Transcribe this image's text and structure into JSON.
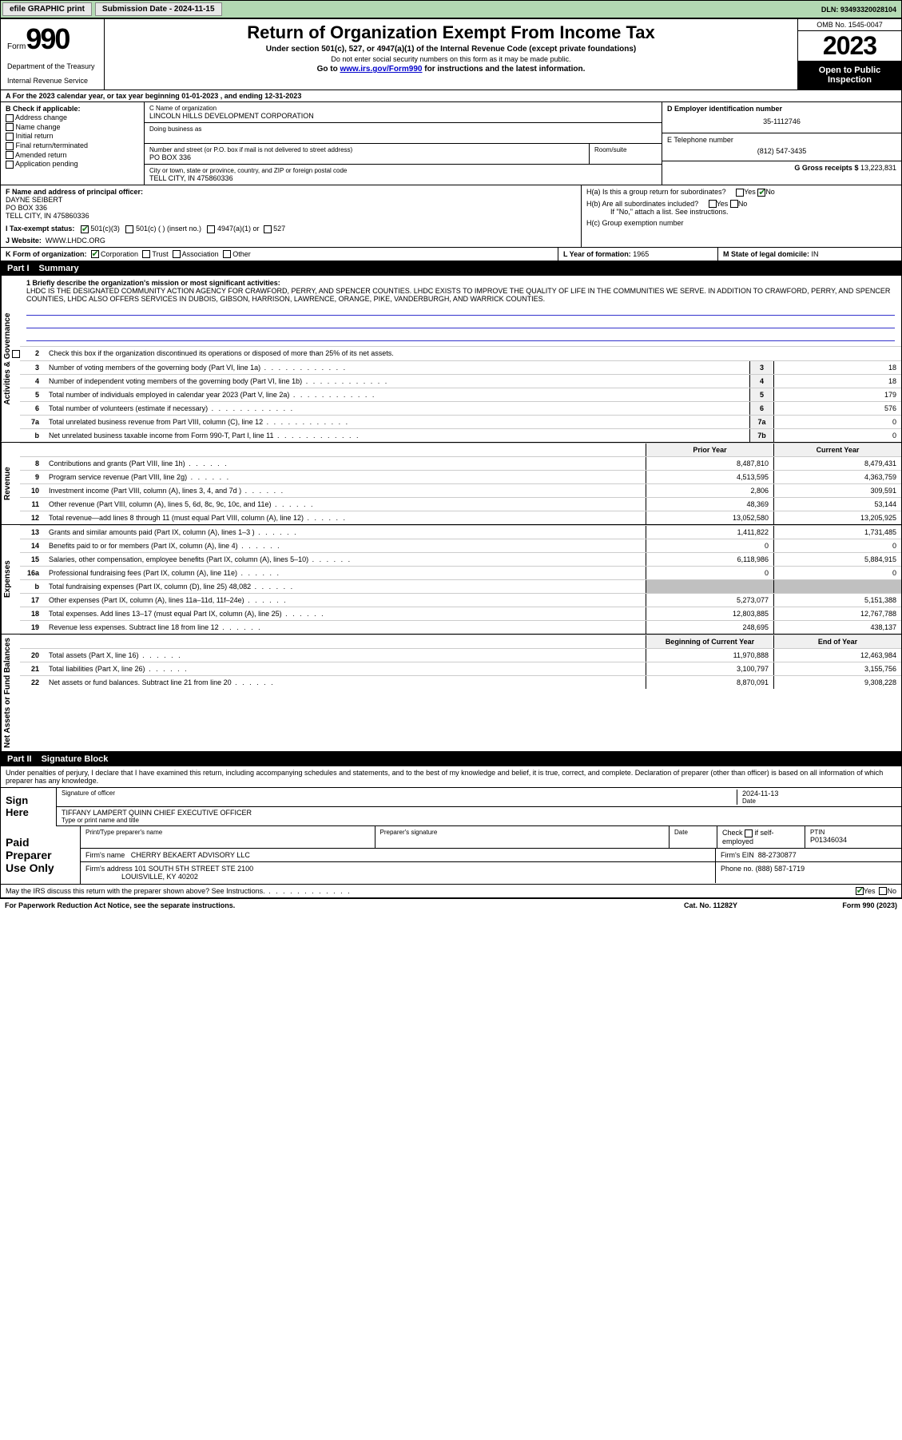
{
  "topbar": {
    "efile": "efile GRAPHIC print",
    "submission_label": "Submission Date - 2024-11-15",
    "dln_label": "DLN: 93493320028104"
  },
  "header": {
    "form_word": "Form",
    "form_num": "990",
    "dept": "Department of the Treasury",
    "irs": "Internal Revenue Service",
    "title": "Return of Organization Exempt From Income Tax",
    "sub1": "Under section 501(c), 527, or 4947(a)(1) of the Internal Revenue Code (except private foundations)",
    "sub2": "Do not enter social security numbers on this form as it may be made public.",
    "sub3_pre": "Go to ",
    "sub3_link": "www.irs.gov/Form990",
    "sub3_post": " for instructions and the latest information.",
    "omb": "OMB No. 1545-0047",
    "year": "2023",
    "open": "Open to Public Inspection"
  },
  "row_a": "A For the 2023 calendar year, or tax year beginning 01-01-2023   , and ending 12-31-2023",
  "section_b": {
    "label": "B Check if applicable:",
    "opts": [
      "Address change",
      "Name change",
      "Initial return",
      "Final return/terminated",
      "Amended return",
      "Application pending"
    ]
  },
  "section_c": {
    "name_label": "C Name of organization",
    "name": "LINCOLN HILLS DEVELOPMENT CORPORATION",
    "dba_label": "Doing business as",
    "addr_label": "Number and street (or P.O. box if mail is not delivered to street address)",
    "room_label": "Room/suite",
    "addr": "PO BOX 336",
    "city_label": "City or town, state or province, country, and ZIP or foreign postal code",
    "city": "TELL CITY, IN  475860336"
  },
  "section_d": {
    "d_label": "D Employer identification number",
    "ein": "35-1112746",
    "e_label": "E Telephone number",
    "phone": "(812) 547-3435",
    "g_label": "G Gross receipts $ ",
    "gross": "13,223,831"
  },
  "section_f": {
    "label": "F Name and address of principal officer:",
    "name": "DAYNE SEIBERT",
    "addr1": "PO BOX 336",
    "addr2": "TELL CITY, IN  475860336"
  },
  "section_h": {
    "ha": "H(a)  Is this a group return for subordinates?",
    "hb": "H(b)  Are all subordinates included?",
    "hb_note": "If \"No,\" attach a list. See instructions.",
    "hc": "H(c)  Group exemption number",
    "yes": "Yes",
    "no": "No"
  },
  "row_i": {
    "label": "I   Tax-exempt status:",
    "o1": "501(c)(3)",
    "o2": "501(c) (  ) (insert no.)",
    "o3": "4947(a)(1) or",
    "o4": "527"
  },
  "row_j": {
    "label": "J   Website:",
    "val": "WWW.LHDC.ORG"
  },
  "row_k": {
    "label": "K Form of organization:",
    "o1": "Corporation",
    "o2": "Trust",
    "o3": "Association",
    "o4": "Other",
    "l_label": "L Year of formation: ",
    "l_val": "1965",
    "m_label": "M State of legal domicile: ",
    "m_val": "IN"
  },
  "part1": {
    "num": "Part I",
    "title": "Summary",
    "q1_label": "1   Briefly describe the organization's mission or most significant activities:",
    "mission": "LHDC IS THE DESIGNATED COMMUNITY ACTION AGENCY FOR CRAWFORD, PERRY, AND SPENCER COUNTIES. LHDC EXISTS TO IMPROVE THE QUALITY OF LIFE IN THE COMMUNITIES WE SERVE. IN ADDITION TO CRAWFORD, PERRY, AND SPENCER COUNTIES, LHDC ALSO OFFERS SERVICES IN DUBOIS, GIBSON, HARRISON, LAWRENCE, ORANGE, PIKE, VANDERBURGH, AND WARRICK COUNTIES.",
    "q2": "Check this box      if the organization discontinued its operations or disposed of more than 25% of its net assets.",
    "vlabel1": "Activities & Governance",
    "vlabel2": "Revenue",
    "vlabel3": "Expenses",
    "vlabel4": "Net Assets or Fund Balances",
    "lines_gov": [
      {
        "n": "3",
        "t": "Number of voting members of the governing body (Part VI, line 1a)",
        "b": "3",
        "v": "18"
      },
      {
        "n": "4",
        "t": "Number of independent voting members of the governing body (Part VI, line 1b)",
        "b": "4",
        "v": "18"
      },
      {
        "n": "5",
        "t": "Total number of individuals employed in calendar year 2023 (Part V, line 2a)",
        "b": "5",
        "v": "179"
      },
      {
        "n": "6",
        "t": "Total number of volunteers (estimate if necessary)",
        "b": "6",
        "v": "576"
      },
      {
        "n": "7a",
        "t": "Total unrelated business revenue from Part VIII, column (C), line 12",
        "b": "7a",
        "v": "0"
      },
      {
        "n": "b",
        "t": "Net unrelated business taxable income from Form 990-T, Part I, line 11",
        "b": "7b",
        "v": "0"
      }
    ],
    "hdr_prior": "Prior Year",
    "hdr_current": "Current Year",
    "lines_rev": [
      {
        "n": "8",
        "t": "Contributions and grants (Part VIII, line 1h)",
        "p": "8,487,810",
        "c": "8,479,431"
      },
      {
        "n": "9",
        "t": "Program service revenue (Part VIII, line 2g)",
        "p": "4,513,595",
        "c": "4,363,759"
      },
      {
        "n": "10",
        "t": "Investment income (Part VIII, column (A), lines 3, 4, and 7d )",
        "p": "2,806",
        "c": "309,591"
      },
      {
        "n": "11",
        "t": "Other revenue (Part VIII, column (A), lines 5, 6d, 8c, 9c, 10c, and 11e)",
        "p": "48,369",
        "c": "53,144"
      },
      {
        "n": "12",
        "t": "Total revenue—add lines 8 through 11 (must equal Part VIII, column (A), line 12)",
        "p": "13,052,580",
        "c": "13,205,925"
      }
    ],
    "lines_exp": [
      {
        "n": "13",
        "t": "Grants and similar amounts paid (Part IX, column (A), lines 1–3 )",
        "p": "1,411,822",
        "c": "1,731,485"
      },
      {
        "n": "14",
        "t": "Benefits paid to or for members (Part IX, column (A), line 4)",
        "p": "0",
        "c": "0"
      },
      {
        "n": "15",
        "t": "Salaries, other compensation, employee benefits (Part IX, column (A), lines 5–10)",
        "p": "6,118,986",
        "c": "5,884,915"
      },
      {
        "n": "16a",
        "t": "Professional fundraising fees (Part IX, column (A), line 11e)",
        "p": "0",
        "c": "0"
      },
      {
        "n": "b",
        "t": "Total fundraising expenses (Part IX, column (D), line 25) 48,082",
        "p": "",
        "c": "",
        "grey": true
      },
      {
        "n": "17",
        "t": "Other expenses (Part IX, column (A), lines 11a–11d, 11f–24e)",
        "p": "5,273,077",
        "c": "5,151,388"
      },
      {
        "n": "18",
        "t": "Total expenses. Add lines 13–17 (must equal Part IX, column (A), line 25)",
        "p": "12,803,885",
        "c": "12,767,788"
      },
      {
        "n": "19",
        "t": "Revenue less expenses. Subtract line 18 from line 12",
        "p": "248,695",
        "c": "438,137"
      }
    ],
    "hdr_begin": "Beginning of Current Year",
    "hdr_end": "End of Year",
    "lines_net": [
      {
        "n": "20",
        "t": "Total assets (Part X, line 16)",
        "p": "11,970,888",
        "c": "12,463,984"
      },
      {
        "n": "21",
        "t": "Total liabilities (Part X, line 26)",
        "p": "3,100,797",
        "c": "3,155,756"
      },
      {
        "n": "22",
        "t": "Net assets or fund balances. Subtract line 21 from line 20",
        "p": "8,870,091",
        "c": "9,308,228"
      }
    ]
  },
  "part2": {
    "num": "Part II",
    "title": "Signature Block",
    "decl": "Under penalties of perjury, I declare that I have examined this return, including accompanying schedules and statements, and to the best of my knowledge and belief, it is true, correct, and complete. Declaration of preparer (other than officer) is based on all information of which preparer has any knowledge."
  },
  "sign": {
    "label": "Sign Here",
    "sig_label": "Signature of officer",
    "date_label": "Date",
    "date": "2024-11-13",
    "name": "TIFFANY LAMPERT QUINN  CHIEF EXECUTIVE OFFICER",
    "type_label": "Type or print name and title"
  },
  "paid": {
    "label": "Paid Preparer Use Only",
    "h1": "Print/Type preparer's name",
    "h2": "Preparer's signature",
    "h3": "Date",
    "h4_pre": "Check",
    "h4_post": "if self-employed",
    "h5": "PTIN",
    "ptin": "P01346034",
    "firm_label": "Firm's name",
    "firm": "CHERRY BEKAERT ADVISORY LLC",
    "ein_label": "Firm's EIN",
    "ein": "88-2730877",
    "addr_label": "Firm's address",
    "addr1": "101 SOUTH 5TH STREET STE 2100",
    "addr2": "LOUISVILLE, KY  40202",
    "phone_label": "Phone no.",
    "phone": "(888) 587-1719"
  },
  "discuss": {
    "q": "May the IRS discuss this return with the preparer shown above? See Instructions.",
    "yes": "Yes",
    "no": "No"
  },
  "footer": {
    "left": "For Paperwork Reduction Act Notice, see the separate instructions.",
    "mid": "Cat. No. 11282Y",
    "right": "Form 990 (2023)"
  }
}
